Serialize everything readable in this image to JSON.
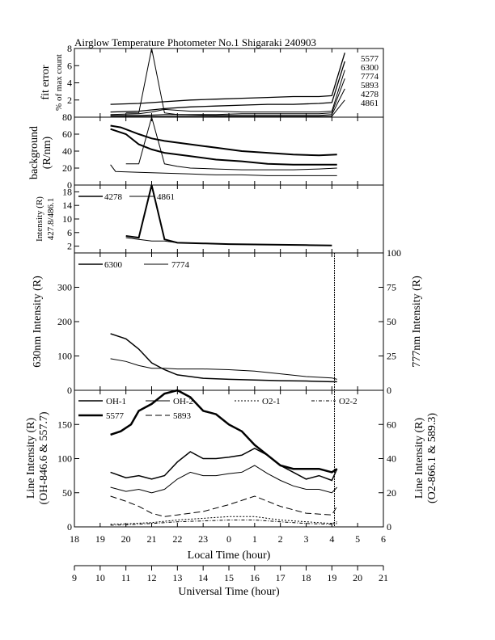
{
  "title": "Airglow Temperature Photometer No.1  Shigaraki  240903",
  "x_local": {
    "label": "Local Time (hour)",
    "ticks": [
      "18",
      "19",
      "20",
      "21",
      "22",
      "23",
      "0",
      "1",
      "2",
      "3",
      "4",
      "5",
      "6"
    ]
  },
  "x_ut": {
    "label": "Universal Time (hour)",
    "ticks": [
      "9",
      "10",
      "11",
      "12",
      "13",
      "14",
      "15",
      "16",
      "17",
      "18",
      "19",
      "20",
      "21"
    ]
  },
  "panels": {
    "fit": {
      "ylabel1": "fit error",
      "ylabel2": "% of max count",
      "ticks": [
        "0",
        "2",
        "4",
        "6",
        "8"
      ],
      "legend": [
        "5577",
        "6300",
        "7774",
        "5893",
        "4278",
        "4861"
      ]
    },
    "bg": {
      "ylabel1": "background",
      "ylabel2": "(R/nm)",
      "ticks": [
        "0",
        "20",
        "40",
        "60",
        "80"
      ]
    },
    "blue": {
      "ylabel1": "Intensity (R)",
      "ylabel2": "427.8/486.1",
      "ticks": [
        "2",
        "6",
        "10",
        "14",
        "18"
      ],
      "legend": [
        "4278",
        "4861"
      ]
    },
    "red": {
      "ylabel_left": "630nm Intensity (R)",
      "ylabel_right": "777nm Intensity (R)",
      "ticks_left": [
        "0",
        "100",
        "200",
        "300"
      ],
      "ticks_right": [
        "0",
        "25",
        "50",
        "75",
        "100"
      ],
      "legend": [
        "6300",
        "7774"
      ]
    },
    "line": {
      "ylabel_left1": "Line Intensity (R)",
      "ylabel_left2": "(OH-846.6 & 557.7)",
      "ylabel_right1": "Line Intensity (R)",
      "ylabel_right2": "(O2-866.1 & 589.3)",
      "ticks_left": [
        "0",
        "50",
        "100",
        "150"
      ],
      "ticks_right": [
        "0",
        "20",
        "40",
        "60"
      ],
      "legend": [
        "OH-1",
        "OH-2",
        "O2-1",
        "O2-2",
        "5577",
        "5893"
      ]
    }
  },
  "chart_data": [
    {
      "type": "line",
      "panel": "fit error",
      "x_unit": "local hour",
      "ylim": [
        0,
        8
      ],
      "series": [
        {
          "name": "5577",
          "x": [
            19.4,
            20.5,
            21.5,
            22.5,
            23.5,
            0.5,
            1.5,
            2.5,
            3.5,
            4.0,
            4.5
          ],
          "y": [
            1.5,
            1.6,
            1.8,
            2.0,
            2.1,
            2.2,
            2.3,
            2.4,
            2.4,
            2.5,
            7.5
          ]
        },
        {
          "name": "6300",
          "x": [
            19.4,
            20.5,
            21.5,
            22.5,
            23.5,
            0.5,
            1.5,
            2.5,
            3.5,
            4.0,
            4.5
          ],
          "y": [
            0.6,
            0.7,
            1.0,
            1.2,
            1.3,
            1.4,
            1.5,
            1.5,
            1.6,
            1.7,
            6.5
          ]
        },
        {
          "name": "7774",
          "x": [
            19.4,
            20.5,
            21.0,
            21.5,
            22.5,
            23.5,
            0.5,
            1.5,
            2.5,
            3.5,
            4.0,
            4.5
          ],
          "y": [
            0.3,
            0.4,
            0.6,
            0.9,
            0.7,
            0.7,
            0.6,
            0.6,
            0.6,
            0.6,
            0.7,
            5.5
          ]
        },
        {
          "name": "5893",
          "x": [
            19.4,
            20.5,
            21.5,
            22.5,
            23.5,
            0.5,
            1.5,
            2.5,
            3.5,
            4.0,
            4.5
          ],
          "y": [
            0.2,
            0.2,
            0.3,
            0.3,
            0.3,
            0.4,
            0.4,
            0.4,
            0.4,
            0.5,
            4.5
          ]
        },
        {
          "name": "4278",
          "x": [
            20.0,
            20.5,
            21.0,
            21.5,
            22.0,
            23.5,
            0.5,
            1.5,
            2.5,
            3.5,
            4.0,
            4.5
          ],
          "y": [
            0.5,
            0.5,
            8.0,
            0.5,
            0.3,
            0.2,
            0.2,
            0.2,
            0.2,
            0.2,
            0.3,
            3.3
          ]
        },
        {
          "name": "4861",
          "x": [
            19.4,
            20.5,
            21.5,
            22.5,
            23.5,
            0.5,
            1.5,
            2.5,
            3.5,
            4.0,
            4.5
          ],
          "y": [
            0.1,
            0.1,
            0.1,
            0.1,
            0.1,
            0.1,
            0.1,
            0.1,
            0.1,
            0.1,
            2.0
          ]
        }
      ]
    },
    {
      "type": "line",
      "panel": "background",
      "x_unit": "local hour",
      "ylim": [
        0,
        80
      ],
      "series": [
        {
          "x": [
            19.4,
            19.8,
            20.5,
            21.0,
            21.5,
            22.5,
            23.5,
            0.5,
            1.5,
            2.5,
            3.5,
            4.2
          ],
          "y": [
            70,
            68,
            60,
            55,
            52,
            48,
            44,
            40,
            38,
            36,
            35,
            36
          ]
        },
        {
          "x": [
            19.4,
            20.0,
            20.5,
            21.0,
            21.5,
            22.5,
            23.5,
            0.5,
            1.5,
            2.5,
            3.5,
            4.2
          ],
          "y": [
            66,
            60,
            48,
            42,
            38,
            34,
            30,
            28,
            25,
            24,
            24,
            24
          ]
        },
        {
          "x": [
            20.0,
            20.5,
            21.0,
            21.5,
            22.0,
            22.5,
            23.5,
            0.5,
            1.5,
            2.5,
            3.5,
            4.2
          ],
          "y": [
            25,
            25,
            80,
            25,
            22,
            20,
            19,
            18,
            18,
            18,
            19,
            20
          ]
        },
        {
          "x": [
            19.4,
            19.6,
            20.5,
            21.5,
            22.5,
            23.5,
            0.5,
            1.5,
            2.5,
            3.5,
            4.2
          ],
          "y": [
            24,
            16,
            15,
            14,
            13,
            12,
            12,
            11,
            11,
            11,
            11
          ]
        }
      ]
    },
    {
      "type": "line",
      "panel": "427.8/486.1 intensity",
      "x_unit": "local hour",
      "ylim": [
        0,
        20
      ],
      "series": [
        {
          "name": "4278",
          "x": [
            20.0,
            20.5,
            21.0,
            21.5,
            22.0,
            23.0,
            0.0,
            1.0,
            2.0,
            3.0,
            4.0
          ],
          "y": [
            5,
            4.5,
            20,
            4,
            3,
            2.8,
            2.6,
            2.5,
            2.4,
            2.3,
            2.2
          ]
        },
        {
          "name": "4861",
          "x": [
            20.0,
            20.5,
            21.0,
            21.5,
            22.0,
            23.0,
            0.0,
            1.0,
            2.0,
            3.0,
            4.0
          ],
          "y": [
            4.5,
            4,
            3.5,
            3.5,
            3,
            2.8,
            2.6,
            2.5,
            2.4,
            2.3,
            2.2
          ]
        }
      ]
    },
    {
      "type": "line",
      "panel": "630nm / 777nm intensity",
      "x_unit": "local hour",
      "ylim_left": [
        0,
        400
      ],
      "ylim_right": [
        0,
        100
      ],
      "series": [
        {
          "name": "6300",
          "axis": "left",
          "x": [
            19.4,
            20.0,
            20.5,
            21.0,
            21.5,
            22.0,
            23.0,
            0.0,
            1.0,
            2.0,
            3.0,
            4.0,
            4.2
          ],
          "y": [
            165,
            150,
            120,
            80,
            60,
            45,
            35,
            32,
            30,
            28,
            27,
            25,
            25
          ]
        },
        {
          "name": "7774",
          "axis": "right",
          "x": [
            19.4,
            20.0,
            20.5,
            21.0,
            21.5,
            22.0,
            23.0,
            0.0,
            1.0,
            2.0,
            3.0,
            4.0,
            4.2
          ],
          "y": [
            23,
            21,
            18,
            16,
            16,
            15.5,
            15.5,
            15,
            14,
            12,
            10,
            9,
            8
          ]
        }
      ]
    },
    {
      "type": "line",
      "panel": "line intensity",
      "x_unit": "local hour",
      "ylim_left": [
        0,
        200
      ],
      "ylim_right": [
        0,
        80
      ],
      "series": [
        {
          "name": "OH-1",
          "axis": "left",
          "x": [
            19.4,
            20.0,
            20.5,
            21.0,
            21.5,
            22.0,
            22.5,
            23.0,
            23.5,
            0.0,
            0.5,
            1.0,
            1.5,
            2.0,
            2.5,
            3.0,
            3.5,
            4.0,
            4.2
          ],
          "y": [
            80,
            72,
            75,
            70,
            75,
            95,
            110,
            100,
            100,
            102,
            105,
            115,
            105,
            90,
            80,
            70,
            75,
            68,
            85
          ]
        },
        {
          "name": "OH-2",
          "axis": "left",
          "x": [
            19.4,
            20.0,
            20.5,
            21.0,
            21.5,
            22.0,
            22.5,
            23.0,
            23.5,
            0.0,
            0.5,
            1.0,
            1.5,
            2.0,
            2.5,
            3.0,
            3.5,
            4.0,
            4.2
          ],
          "y": [
            58,
            52,
            55,
            50,
            55,
            70,
            80,
            75,
            75,
            78,
            80,
            90,
            78,
            68,
            60,
            55,
            55,
            50,
            58
          ]
        },
        {
          "name": "5577",
          "axis": "left",
          "x": [
            19.4,
            19.8,
            20.2,
            20.5,
            21.0,
            21.5,
            22.0,
            22.5,
            23.0,
            23.5,
            0.0,
            0.5,
            1.0,
            1.5,
            2.0,
            2.5,
            3.0,
            3.5,
            4.0,
            4.2
          ],
          "y": [
            135,
            140,
            150,
            170,
            180,
            195,
            205,
            190,
            170,
            165,
            150,
            140,
            120,
            105,
            90,
            85,
            85,
            85,
            80,
            85
          ]
        },
        {
          "name": "5893",
          "axis": "right",
          "x": [
            19.4,
            20.0,
            20.5,
            21.0,
            21.5,
            22.0,
            23.0,
            0.0,
            1.0,
            2.0,
            3.0,
            4.0,
            4.2
          ],
          "y": [
            18,
            15,
            12,
            8,
            6,
            7,
            9,
            13,
            18,
            12,
            8,
            7,
            12
          ]
        },
        {
          "name": "O2-1",
          "axis": "right",
          "x": [
            19.4,
            20.0,
            21.0,
            22.0,
            23.0,
            0.0,
            1.0,
            2.0,
            3.0,
            4.0,
            4.2
          ],
          "y": [
            1.5,
            1.8,
            2.5,
            4,
            5,
            6,
            6,
            4,
            3,
            2,
            3
          ]
        },
        {
          "name": "O2-2",
          "axis": "right",
          "x": [
            19.4,
            20.0,
            21.0,
            22.0,
            23.0,
            0.0,
            1.0,
            2.0,
            3.0,
            4.0,
            4.2
          ],
          "y": [
            1,
            1.2,
            2,
            3,
            3.5,
            4,
            4,
            3,
            2,
            1.5,
            2
          ]
        }
      ]
    }
  ]
}
